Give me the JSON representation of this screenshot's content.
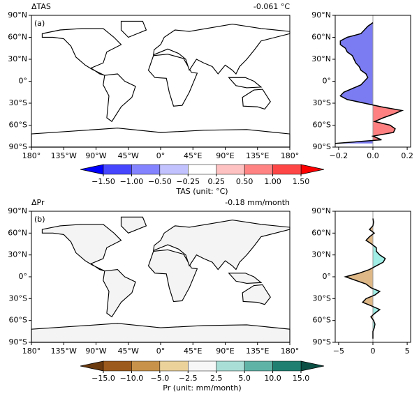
{
  "chart_data": [
    {
      "type": "map",
      "title": "ΔTAS",
      "subtitle": "-0.061 °C",
      "panel_label": "(a)",
      "land_color": "#ffffff",
      "xlim": [
        -180,
        180
      ],
      "xticks": [
        {
          "value": -180,
          "label": "180°"
        },
        {
          "value": -135,
          "label": "135°W"
        },
        {
          "value": -90,
          "label": "90°W"
        },
        {
          "value": -45,
          "label": "45°W"
        },
        {
          "value": 0,
          "label": "0°"
        },
        {
          "value": 45,
          "label": "45°E"
        },
        {
          "value": 90,
          "label": "90°E"
        },
        {
          "value": 135,
          "label": "135°E"
        },
        {
          "value": 180,
          "label": "180°"
        }
      ],
      "ylim": [
        -90,
        90
      ],
      "yticks": [
        {
          "value": 90,
          "label": "90°N"
        },
        {
          "value": 60,
          "label": "60°N"
        },
        {
          "value": 30,
          "label": "30°N"
        },
        {
          "value": 0,
          "label": "0°"
        },
        {
          "value": -30,
          "label": "30°S"
        },
        {
          "value": -60,
          "label": "60°S"
        },
        {
          "value": -90,
          "label": "90°S"
        }
      ],
      "colorbar": {
        "label": "TAS (unit: °C)",
        "ticks": [
          {
            "value": -1.5,
            "label": "−1.50"
          },
          {
            "value": -1.0,
            "label": "−1.00"
          },
          {
            "value": -0.5,
            "label": "−0.50"
          },
          {
            "value": -0.25,
            "label": "−0.25"
          },
          {
            "value": 0.25,
            "label": "0.25"
          },
          {
            "value": 0.5,
            "label": "0.50"
          },
          {
            "value": 1.0,
            "label": "1.00"
          },
          {
            "value": 1.5,
            "label": "1.50"
          }
        ],
        "colors": [
          "#0000ff",
          "#4646ff",
          "#8383ff",
          "#c2c2ff",
          "#ffffff",
          "#ffc2c2",
          "#ff8383",
          "#ff4646",
          "#ff0000"
        ]
      }
    },
    {
      "type": "zonal",
      "pos_color": "#ff8080",
      "neg_color": "#7b7bf2",
      "y": [
        80,
        75,
        70,
        65,
        60,
        55,
        50,
        45,
        40,
        35,
        30,
        25,
        20,
        15,
        10,
        5,
        0,
        -5,
        -10,
        -15,
        -20,
        -25,
        -30,
        -35,
        -40,
        -45,
        -50,
        -55,
        -60,
        -65,
        -70,
        -75,
        -80,
        -85
      ],
      "values": [
        0,
        -0.03,
        -0.05,
        -0.07,
        -0.15,
        -0.19,
        -0.19,
        -0.16,
        -0.15,
        -0.12,
        -0.11,
        -0.1,
        -0.08,
        -0.07,
        -0.04,
        -0.03,
        -0.05,
        -0.07,
        -0.12,
        -0.17,
        -0.19,
        -0.15,
        -0.05,
        0.05,
        0.17,
        0.12,
        0.06,
        0.01,
        0.1,
        0.13,
        0.12,
        0.0,
        0.05,
        -0.22
      ],
      "xlim": [
        -0.22,
        0.22
      ],
      "xticks": [
        {
          "value": -0.2,
          "label": "−0.2"
        },
        {
          "value": 0,
          "label": "0.0"
        },
        {
          "value": 0.2,
          "label": "0.2"
        }
      ],
      "ylim": [
        -90,
        90
      ],
      "yticks": [
        {
          "value": 90,
          "label": "90°N"
        },
        {
          "value": 60,
          "label": "60°N"
        },
        {
          "value": 30,
          "label": "30°N"
        },
        {
          "value": 0,
          "label": "0°"
        },
        {
          "value": -30,
          "label": "30°S"
        },
        {
          "value": -60,
          "label": "60°S"
        },
        {
          "value": -90,
          "label": "90°S"
        }
      ]
    },
    {
      "type": "map",
      "title": "ΔPr",
      "subtitle": "-0.18 mm/month",
      "panel_label": "(b)",
      "land_color": "#f4f4f4",
      "xlim": [
        -180,
        180
      ],
      "xticks": [
        {
          "value": -180,
          "label": "180°"
        },
        {
          "value": -135,
          "label": "135°W"
        },
        {
          "value": -90,
          "label": "90°W"
        },
        {
          "value": -45,
          "label": "45°W"
        },
        {
          "value": 0,
          "label": "0°"
        },
        {
          "value": 45,
          "label": "45°E"
        },
        {
          "value": 90,
          "label": "90°E"
        },
        {
          "value": 135,
          "label": "135°E"
        },
        {
          "value": 180,
          "label": "180°"
        }
      ],
      "ylim": [
        -90,
        90
      ],
      "yticks": [
        {
          "value": 90,
          "label": "90°N"
        },
        {
          "value": 60,
          "label": "60°N"
        },
        {
          "value": 30,
          "label": "30°N"
        },
        {
          "value": 0,
          "label": "0°"
        },
        {
          "value": -30,
          "label": "30°S"
        },
        {
          "value": -60,
          "label": "60°S"
        },
        {
          "value": -90,
          "label": "90°S"
        }
      ],
      "colorbar": {
        "label": "Pr (unit: mm/month)",
        "ticks": [
          {
            "value": -15,
            "label": "−15.0"
          },
          {
            "value": -10,
            "label": "−10.0"
          },
          {
            "value": -5,
            "label": "−5.0"
          },
          {
            "value": -2.5,
            "label": "−2.5"
          },
          {
            "value": 2.5,
            "label": "2.5"
          },
          {
            "value": 5,
            "label": "5.0"
          },
          {
            "value": 10,
            "label": "10.0"
          },
          {
            "value": 15,
            "label": "15.0"
          }
        ],
        "colors": [
          "#6b3a0f",
          "#9c5a1c",
          "#c8924a",
          "#ebd29b",
          "#f7f7f7",
          "#a8ded6",
          "#5fb3a6",
          "#1f7f70",
          "#0b4f45"
        ]
      }
    },
    {
      "type": "zonal",
      "pos_color": "#a0eee6",
      "neg_color": "#deb887",
      "y": [
        80,
        75,
        70,
        65,
        60,
        55,
        50,
        45,
        40,
        35,
        30,
        25,
        20,
        15,
        10,
        5,
        0,
        -5,
        -10,
        -15,
        -20,
        -25,
        -30,
        -35,
        -40,
        -45,
        -50,
        -55,
        -60,
        -65,
        -70,
        -75,
        -80,
        -85
      ],
      "values": [
        0,
        0.1,
        0,
        -0.5,
        0.2,
        -0.5,
        -1.0,
        -0.2,
        0.5,
        0.5,
        1.0,
        1.8,
        1.5,
        0.5,
        -0.5,
        -2.0,
        -4.0,
        -2.5,
        -1.0,
        -0.3,
        1.0,
        0.3,
        -1.0,
        -1.5,
        -0.2,
        1.0,
        0.3,
        -0.3,
        0.1,
        0.3,
        0.2,
        0,
        0,
        0
      ],
      "xlim": [
        -5.5,
        5.5
      ],
      "xticks": [
        {
          "value": -5,
          "label": "−5"
        },
        0,
        5
      ],
      "ylim": [
        -90,
        90
      ],
      "yticks": [
        {
          "value": 90,
          "label": "90°N"
        },
        {
          "value": 60,
          "label": "60°N"
        },
        {
          "value": 30,
          "label": "30°N"
        },
        {
          "value": 0,
          "label": "0°"
        },
        {
          "value": -30,
          "label": "30°S"
        },
        {
          "value": -60,
          "label": "60°S"
        },
        {
          "value": -90,
          "label": "90°S"
        }
      ]
    }
  ]
}
